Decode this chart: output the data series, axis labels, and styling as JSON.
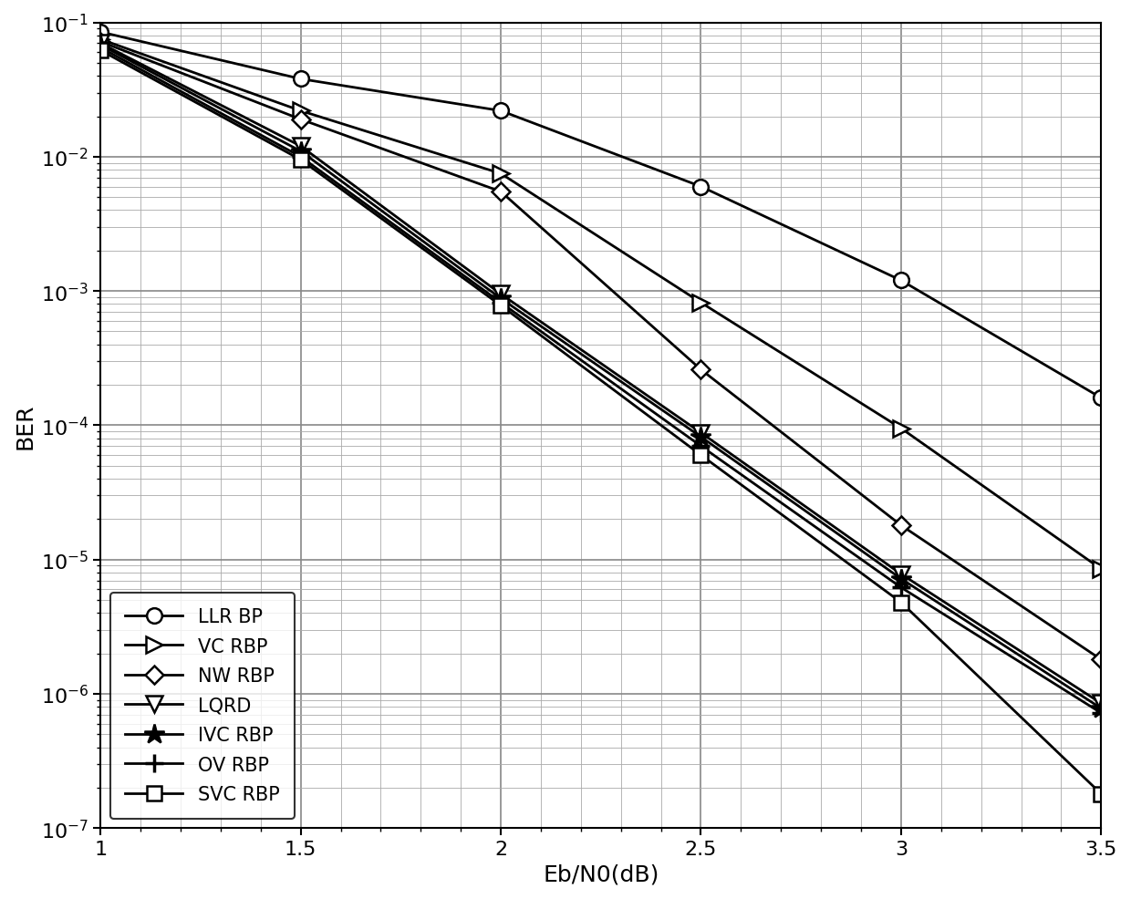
{
  "title": "",
  "xlabel": "Eb/N0(dB)",
  "ylabel": "BER",
  "xlim": [
    1,
    3.5
  ],
  "ylim_log": [
    -7,
    -1
  ],
  "xticks": [
    1,
    1.5,
    2,
    2.5,
    3,
    3.5
  ],
  "series": [
    {
      "label": "LLR BP",
      "x": [
        1.0,
        1.5,
        2.0,
        2.5,
        3.0,
        3.5
      ],
      "y": [
        0.085,
        0.038,
        0.022,
        0.006,
        0.0012,
        0.00016
      ],
      "linewidth": 2.0,
      "color": "black"
    },
    {
      "label": "VC RBP",
      "x": [
        1.0,
        1.5,
        2.0,
        2.5,
        3.0,
        3.5
      ],
      "y": [
        0.075,
        0.022,
        0.0075,
        0.00082,
        9.5e-05,
        8.5e-06
      ],
      "linewidth": 2.0,
      "color": "black"
    },
    {
      "label": "NW RBP",
      "x": [
        1.0,
        1.5,
        2.0,
        2.5,
        3.0,
        3.5
      ],
      "y": [
        0.072,
        0.019,
        0.0055,
        0.00026,
        1.8e-05,
        1.8e-06
      ],
      "linewidth": 2.0,
      "color": "black"
    },
    {
      "label": "LQRD",
      "x": [
        1.0,
        1.5,
        2.0,
        2.5,
        3.0,
        3.5
      ],
      "y": [
        0.07,
        0.012,
        0.00095,
        8.8e-05,
        7.8e-06,
        8.5e-07
      ],
      "linewidth": 2.0,
      "color": "black"
    },
    {
      "label": "IVC RBP",
      "x": [
        1.0,
        1.5,
        2.0,
        2.5,
        3.0,
        3.5
      ],
      "y": [
        0.068,
        0.011,
        0.00088,
        8.2e-05,
        7.2e-06,
        7.8e-07
      ],
      "linewidth": 2.0,
      "color": "black"
    },
    {
      "label": "OV RBP",
      "x": [
        1.0,
        1.5,
        2.0,
        2.5,
        3.0,
        3.5
      ],
      "y": [
        0.065,
        0.01,
        0.00082,
        7e-05,
        6.2e-06,
        7.2e-07
      ],
      "linewidth": 2.0,
      "color": "black"
    },
    {
      "label": "SVC RBP",
      "x": [
        1.0,
        1.5,
        2.0,
        2.5,
        3.0,
        3.5
      ],
      "y": [
        0.062,
        0.0095,
        0.00078,
        6e-05,
        4.8e-06,
        1.8e-07
      ],
      "linewidth": 2.0,
      "color": "black"
    }
  ],
  "legend_loc": "lower left",
  "background_color": "white"
}
